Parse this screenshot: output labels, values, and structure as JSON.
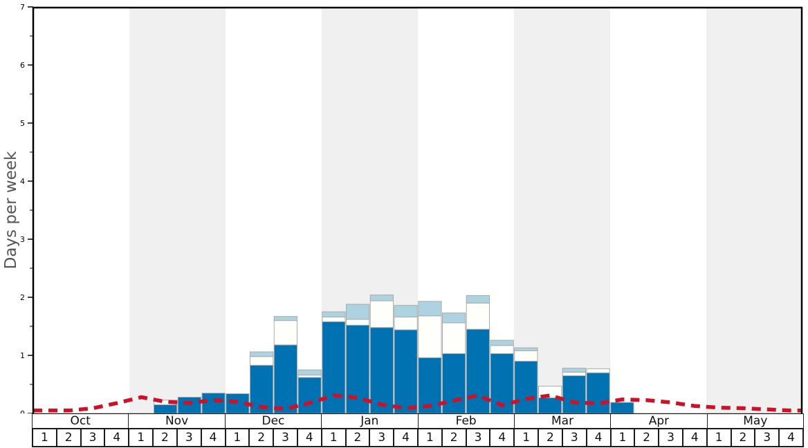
{
  "chart_data": {
    "type": "bar",
    "subtype": "stacked-bars-with-dashed-line",
    "title": "",
    "xlabel": "",
    "ylabel": "Days per week",
    "ylim": [
      0,
      7
    ],
    "y_major_ticks": [
      0,
      1,
      2,
      3,
      4,
      5,
      6,
      7
    ],
    "y_minor_step": 0.5,
    "grid": false,
    "legend": "none",
    "months": [
      "Oct",
      "Nov",
      "Dec",
      "Jan",
      "Feb",
      "Mar",
      "Apr",
      "May"
    ],
    "weeks_per_month": [
      "1",
      "2",
      "3",
      "4"
    ],
    "shaded_months": [
      "Nov",
      "Jan",
      "Mar",
      "May"
    ],
    "series": [
      {
        "name": "dark-blue-bars",
        "color": "#0072B2",
        "values": [
          0,
          0,
          0,
          0,
          0,
          0.15,
          0.28,
          0.35,
          0.34,
          0.83,
          1.18,
          0.62,
          1.58,
          1.52,
          1.48,
          1.44,
          0.96,
          1.03,
          1.45,
          1.03,
          0.9,
          0.27,
          0.65,
          0.7,
          0.19,
          0,
          0,
          0,
          0,
          0,
          0,
          0
        ]
      },
      {
        "name": "white-bars",
        "color": "#FEFEFA",
        "values": [
          0,
          0,
          0,
          0,
          0,
          0.08,
          0,
          0,
          0,
          0.15,
          0.42,
          0.04,
          0.08,
          0.1,
          0.46,
          0.22,
          0.72,
          0.53,
          0.45,
          0.14,
          0.18,
          0.2,
          0.06,
          0.07,
          0,
          0,
          0,
          0,
          0,
          0,
          0,
          0
        ]
      },
      {
        "name": "light-blue-bars",
        "color": "#ACD3DF",
        "values": [
          0,
          0,
          0,
          0,
          0,
          0,
          0,
          0,
          0,
          0.08,
          0.07,
          0.09,
          0.09,
          0.26,
          0.1,
          0.2,
          0.25,
          0.17,
          0.13,
          0.09,
          0.05,
          0,
          0.07,
          0,
          0,
          0,
          0,
          0,
          0,
          0,
          0,
          0
        ]
      }
    ],
    "line_series": {
      "name": "red-dashed-line",
      "color": "#CE1126",
      "style": "dashed",
      "values": [
        0.05,
        0.05,
        0.09,
        0.18,
        0.28,
        0.2,
        0.18,
        0.23,
        0.2,
        0.11,
        0.08,
        0.18,
        0.31,
        0.27,
        0.15,
        0.09,
        0.13,
        0.22,
        0.31,
        0.14,
        0.25,
        0.31,
        0.19,
        0.17,
        0.24,
        0.23,
        0.19,
        0.13,
        0.1,
        0.09,
        0.07,
        0.05
      ]
    },
    "colors": {
      "band": "#F0F0F0",
      "bar_outline": "#AAAAAA",
      "frame": "#000000",
      "baseline": "#888888",
      "tick": "#000000",
      "ylabel_color": "#555555"
    }
  }
}
